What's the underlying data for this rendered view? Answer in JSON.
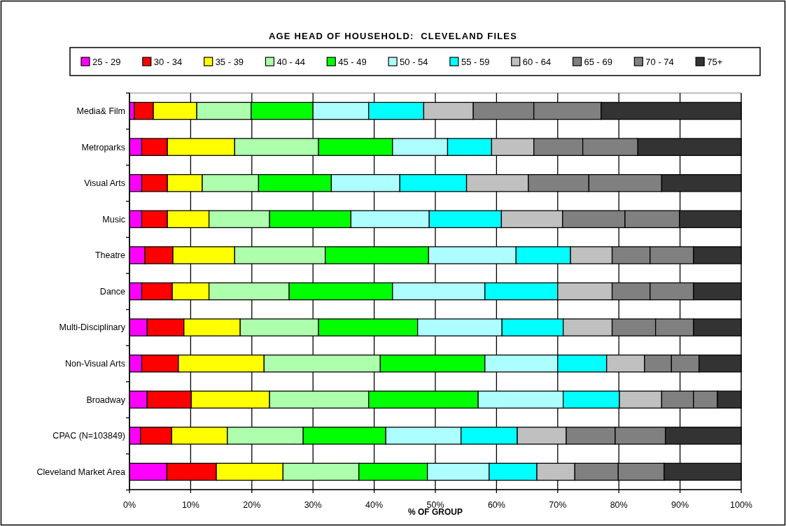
{
  "chart_data": {
    "type": "bar",
    "orientation": "horizontal",
    "stacked": true,
    "title": "AGE HEAD OF HOUSEHOLD:  CLEVELAND FILES",
    "xlabel": "% OF GROUP",
    "categories": [
      "Media& Film",
      "Metroparks",
      "Visual Arts",
      "Music",
      "Theatre",
      "Dance",
      "Multi-Disciplinary",
      "Non-Visual Arts",
      "Broadway",
      "CPAC (N=103849)",
      "Cleveland Market Area"
    ],
    "series": [
      {
        "name": "25 - 29",
        "color": "#ff00ff",
        "values": [
          0.8,
          2,
          2,
          2,
          2.5,
          2,
          2.9,
          2,
          2.9,
          1.8,
          6.1
        ]
      },
      {
        "name": "30 - 34",
        "color": "#ff0000",
        "values": [
          3.1,
          4.2,
          4.2,
          4.2,
          4.6,
          5,
          6,
          6,
          7.2,
          5.1,
          8.1
        ]
      },
      {
        "name": "35 - 39",
        "color": "#ffff00",
        "values": [
          7.1,
          11,
          5.7,
          6.8,
          10.1,
          6,
          9.2,
          14,
          12.8,
          9.1,
          10.9
        ]
      },
      {
        "name": "40 - 44",
        "color": "#adffad",
        "values": [
          8.9,
          13.7,
          9.2,
          9.9,
          14.8,
          13.1,
          12.8,
          19,
          16.2,
          12.4,
          12.4
        ]
      },
      {
        "name": "45 - 49",
        "color": "#00ff00",
        "values": [
          10.1,
          12.1,
          11.9,
          13.3,
          16.9,
          16.9,
          16.2,
          17.1,
          17.9,
          13.5,
          11.2
        ]
      },
      {
        "name": "50 - 54",
        "color": "#adffff",
        "values": [
          9.1,
          9,
          11.2,
          12.8,
          14.3,
          15.1,
          13.8,
          11.9,
          13.9,
          12.3,
          10.1
        ]
      },
      {
        "name": "55 - 59",
        "color": "#00ffff",
        "values": [
          9,
          7.2,
          10.9,
          11.8,
          8.9,
          11.9,
          10,
          8,
          9.2,
          9.2,
          7.8
        ]
      },
      {
        "name": "60 - 64",
        "color": "#c0c0c0",
        "values": [
          8.1,
          6.9,
          10.1,
          10,
          6.8,
          8.9,
          8,
          6.2,
          6.9,
          8,
          6.2
        ]
      },
      {
        "name": "65 - 69",
        "color": "#808080",
        "values": [
          9.9,
          8,
          9.9,
          10.2,
          6.2,
          6.2,
          7.1,
          4.4,
          5.2,
          8,
          7.1
        ]
      },
      {
        "name": "70 - 74",
        "color": "#808080",
        "values": [
          11,
          9,
          11.9,
          8.9,
          7.1,
          7.1,
          6.2,
          4.5,
          3.9,
          8.2,
          7.5
        ]
      },
      {
        "name": "75+",
        "color": "#333333",
        "values": [
          22.9,
          16.9,
          13,
          10.1,
          7.8,
          7.8,
          7.8,
          6.9,
          3.9,
          12.4,
          12.6
        ]
      }
    ],
    "xlim": [
      0,
      100
    ],
    "xticks": [
      {
        "value": 0,
        "label": "0%"
      },
      {
        "value": 10,
        "label": "10%"
      },
      {
        "value": 20,
        "label": "20%"
      },
      {
        "value": 30,
        "label": "30%"
      },
      {
        "value": 40,
        "label": "40%"
      },
      {
        "value": 50,
        "label": "50%"
      },
      {
        "value": 60,
        "label": "60%"
      },
      {
        "value": 70,
        "label": "70%"
      },
      {
        "value": 80,
        "label": "80%"
      },
      {
        "value": 90,
        "label": "90%"
      },
      {
        "value": 100,
        "label": "100%"
      }
    ],
    "grid": "x",
    "legend": "top"
  }
}
